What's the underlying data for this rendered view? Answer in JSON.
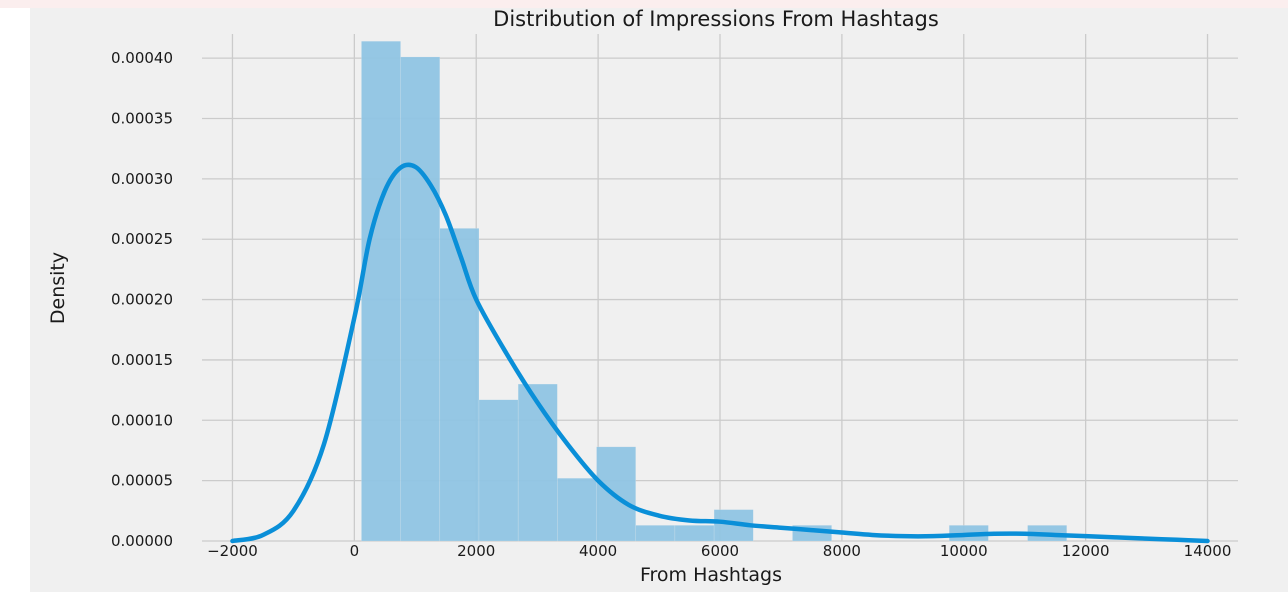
{
  "chart_data": {
    "type": "bar",
    "title": "Distribution of Impressions From Hashtags",
    "xlabel": "From Hashtags",
    "ylabel": "Density",
    "xlim": [
      -2500,
      14500
    ],
    "ylim": [
      0,
      0.00042
    ],
    "x_ticks": [
      -2000,
      0,
      2000,
      4000,
      6000,
      8000,
      10000,
      12000,
      14000
    ],
    "x_tick_labels": [
      "−2000",
      "0",
      "2000",
      "4000",
      "6000",
      "8000",
      "10000",
      "12000",
      "14000"
    ],
    "y_ticks": [
      0,
      5e-05,
      0.0001,
      0.00015,
      0.0002,
      0.00025,
      0.0003,
      0.00035,
      0.0004
    ],
    "y_tick_labels": [
      "0.00000",
      "0.00005",
      "0.00010",
      "0.00015",
      "0.00020",
      "0.00025",
      "0.00030",
      "0.00035",
      "0.00040"
    ],
    "grid": true,
    "histogram": {
      "bins": [
        [
          116,
          759,
          0.000414
        ],
        [
          759,
          1402,
          0.000401
        ],
        [
          1402,
          2045,
          0.000259
        ],
        [
          2045,
          2688,
          0.000117
        ],
        [
          2688,
          3331,
          0.00013
        ],
        [
          3331,
          3974,
          5.2e-05
        ],
        [
          3974,
          4617,
          7.8e-05
        ],
        [
          4617,
          5260,
          1.3e-05
        ],
        [
          5260,
          5903,
          1.3e-05
        ],
        [
          5903,
          6546,
          2.6e-05
        ],
        [
          6546,
          7189,
          0.0
        ],
        [
          7189,
          7832,
          1.3e-05
        ],
        [
          7832,
          8475,
          0.0
        ],
        [
          8475,
          9118,
          0.0
        ],
        [
          9118,
          9761,
          0.0
        ],
        [
          9761,
          10404,
          1.3e-05
        ],
        [
          10404,
          11047,
          0.0
        ],
        [
          11047,
          11690,
          1.3e-05
        ]
      ],
      "color": "#8fc4e3"
    },
    "kde": {
      "x": [
        -2000,
        -1500,
        -1000,
        -500,
        0,
        250,
        500,
        750,
        1000,
        1250,
        1500,
        1750,
        2000,
        2500,
        3000,
        3500,
        4000,
        4500,
        5000,
        5500,
        6000,
        6500,
        7000,
        7500,
        8000,
        8500,
        9000,
        9500,
        10000,
        10500,
        11000,
        11500,
        12000,
        12500,
        13000,
        13500,
        14000
      ],
      "y": [
        0.0,
        5e-06,
        2.5e-05,
        8e-05,
        0.000185,
        0.00025,
        0.00029,
        0.000309,
        0.00031,
        0.000295,
        0.00027,
        0.000235,
        0.0002,
        0.000155,
        0.000115,
        8e-05,
        5e-05,
        3e-05,
        2.1e-05,
        1.7e-05,
        1.6e-05,
        1.3e-05,
        1.1e-05,
        9e-06,
        7e-06,
        5e-06,
        4e-06,
        4e-06,
        5e-06,
        6e-06,
        6e-06,
        5e-06,
        4e-06,
        3e-06,
        2e-06,
        1e-06,
        0.0
      ],
      "color": "#0a8fd8"
    },
    "colors": {
      "background": "#f0f0f0",
      "grid": "#cbcbcb"
    }
  }
}
